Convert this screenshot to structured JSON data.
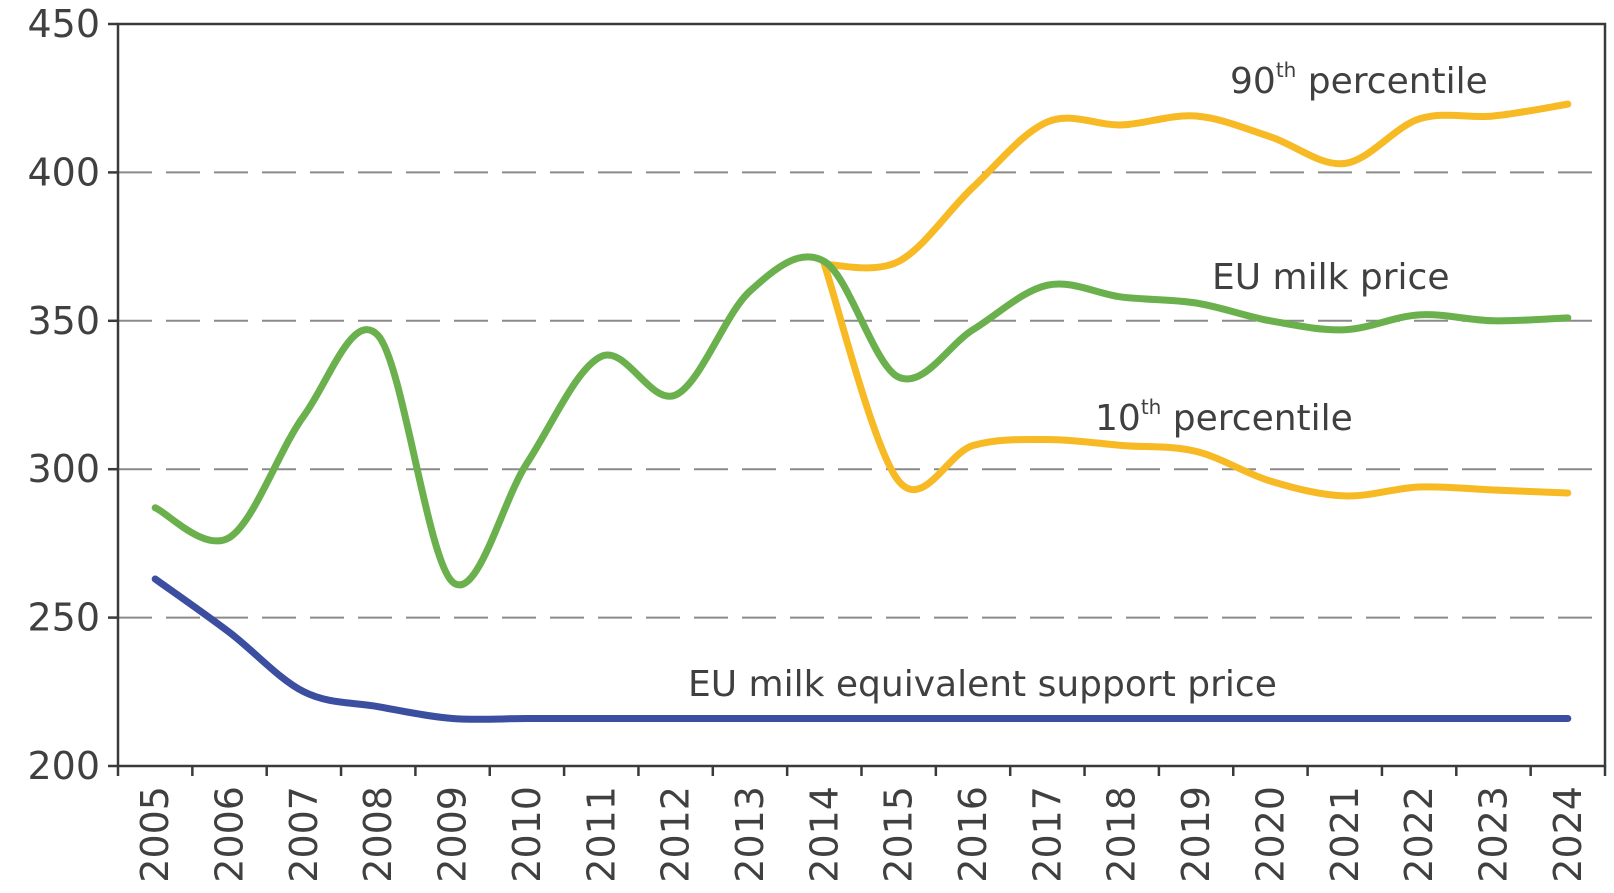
{
  "chart_data": {
    "type": "line",
    "x": [
      "2005",
      "2006",
      "2007",
      "2008",
      "2009",
      "2010",
      "2011",
      "2012",
      "2013",
      "2014",
      "2015",
      "2016",
      "2017",
      "2018",
      "2019",
      "2020",
      "2021",
      "2022",
      "2023",
      "2024"
    ],
    "ylim": [
      200,
      450
    ],
    "yticks": [
      "200",
      "250",
      "300",
      "350",
      "400",
      "450"
    ],
    "grid": "horizontal dashed at 250, 300, 350, 400",
    "colors": {
      "eu_milk_price": "#6ab04c",
      "percentile": "#f7b924",
      "support_price": "#3b4ea0"
    },
    "series": [
      {
        "key": "eu_milk_price",
        "name": "EU milk price",
        "x": [
          "2005",
          "2006",
          "2007",
          "2008",
          "2009",
          "2010",
          "2011",
          "2012",
          "2013",
          "2014",
          "2015",
          "2016",
          "2017",
          "2018",
          "2019",
          "2020",
          "2021",
          "2022",
          "2023",
          "2024"
        ],
        "values": [
          287,
          277,
          318,
          345,
          262,
          302,
          338,
          325,
          360,
          370,
          331,
          347,
          362,
          358,
          356,
          350,
          347,
          352,
          350,
          351
        ]
      },
      {
        "key": "p90",
        "name_main": "90",
        "name_sup": "th",
        "name_rest": " percentile",
        "x": [
          "2014",
          "2015",
          "2016",
          "2017",
          "2018",
          "2019",
          "2020",
          "2021",
          "2022",
          "2023",
          "2024"
        ],
        "values": [
          369,
          370,
          395,
          417,
          416,
          419,
          412,
          403,
          418,
          419,
          423
        ]
      },
      {
        "key": "p10",
        "name_main": "10",
        "name_sup": "th",
        "name_rest": " percentile",
        "x": [
          "2014",
          "2015",
          "2016",
          "2017",
          "2018",
          "2019",
          "2020",
          "2021",
          "2022",
          "2023",
          "2024"
        ],
        "values": [
          369,
          296,
          308,
          310,
          308,
          306,
          296,
          291,
          294,
          293,
          292
        ]
      },
      {
        "key": "support_price",
        "name": "EU milk equivalent support price",
        "x": [
          "2005",
          "2006",
          "2007",
          "2008",
          "2009",
          "2010",
          "2011",
          "2012",
          "2013",
          "2014",
          "2015",
          "2016",
          "2017",
          "2018",
          "2019",
          "2020",
          "2021",
          "2022",
          "2023",
          "2024"
        ],
        "values": [
          263,
          245,
          225,
          220,
          216,
          216,
          216,
          216,
          216,
          216,
          216,
          216,
          216,
          216,
          216,
          216,
          216,
          216,
          216,
          216
        ]
      }
    ]
  }
}
